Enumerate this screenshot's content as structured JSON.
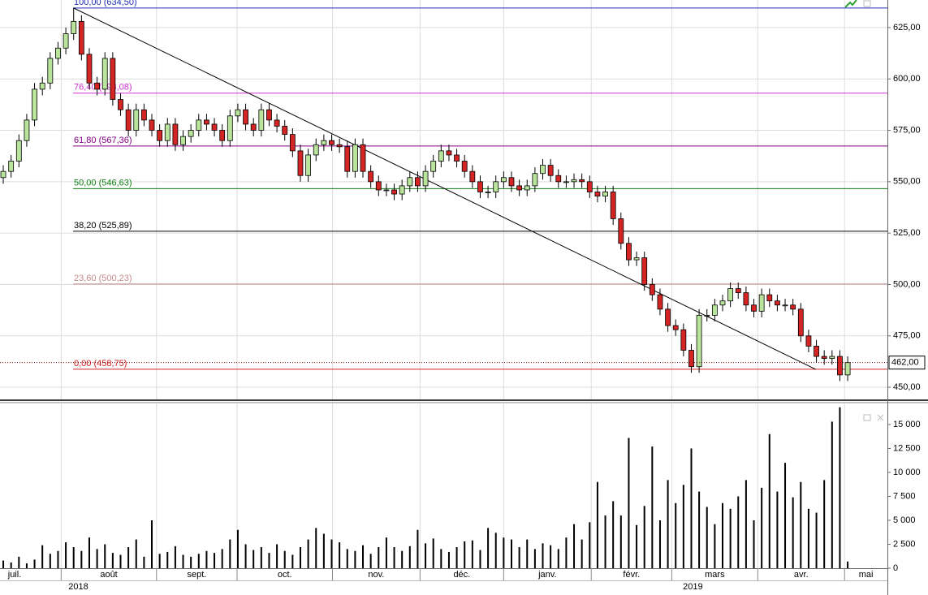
{
  "chart_data": [
    {
      "type": "candlestick",
      "open": [
        552,
        555,
        560,
        570,
        580,
        595,
        598,
        610,
        615,
        622,
        628,
        612,
        598,
        595,
        610,
        590,
        585,
        575,
        585,
        580,
        575,
        570,
        578,
        568,
        572,
        575,
        580,
        578,
        575,
        570,
        582,
        585,
        578,
        575,
        585,
        580,
        577,
        573,
        565,
        553,
        563,
        568,
        570,
        568,
        567,
        555,
        568,
        555,
        550,
        546,
        546,
        544,
        548,
        552,
        548,
        555,
        560,
        565,
        563,
        560,
        555,
        550,
        545,
        545,
        550,
        552,
        548,
        546,
        548,
        554,
        558,
        553,
        550,
        550,
        551,
        550,
        545,
        543,
        545,
        532,
        520,
        512,
        513,
        500,
        495,
        488,
        480,
        478,
        468,
        460,
        485,
        485,
        490,
        492,
        498,
        496,
        490,
        487,
        495,
        492,
        490,
        490,
        488,
        475,
        470,
        465,
        464,
        465,
        456
      ],
      "high": [
        558,
        563,
        573,
        583,
        598,
        601,
        613,
        618,
        625,
        634.5,
        631,
        615,
        601,
        613,
        613,
        593,
        588,
        588,
        588,
        583,
        578,
        581,
        581,
        575,
        578,
        583,
        583,
        581,
        578,
        585,
        588,
        588,
        581,
        588,
        588,
        583,
        580,
        576,
        568,
        566,
        571,
        573,
        573,
        571,
        570,
        571,
        571,
        558,
        553,
        549,
        549,
        551,
        555,
        555,
        558,
        563,
        568,
        568,
        566,
        563,
        558,
        553,
        548,
        553,
        555,
        555,
        551,
        551,
        557,
        561,
        561,
        556,
        553,
        554,
        554,
        553,
        548,
        548,
        548,
        535,
        523,
        516,
        516,
        503,
        498,
        491,
        483,
        481,
        471,
        488,
        488,
        493,
        495,
        501,
        501,
        499,
        493,
        498,
        498,
        495,
        493,
        493,
        491,
        478,
        473,
        468,
        468,
        468,
        465
      ],
      "low": [
        549,
        552,
        557,
        567,
        577,
        592,
        595,
        607,
        612,
        619,
        609,
        595,
        592,
        592,
        587,
        582,
        572,
        572,
        577,
        572,
        567,
        567,
        565,
        565,
        569,
        572,
        575,
        572,
        567,
        567,
        579,
        575,
        572,
        572,
        577,
        574,
        570,
        562,
        550,
        550,
        560,
        565,
        565,
        564,
        552,
        552,
        552,
        547,
        543,
        543,
        541,
        541,
        545,
        545,
        545,
        552,
        557,
        560,
        557,
        552,
        547,
        542,
        542,
        542,
        547,
        545,
        543,
        543,
        545,
        551,
        550,
        547,
        547,
        547,
        547,
        542,
        540,
        540,
        529,
        517,
        509,
        509,
        497,
        492,
        485,
        477,
        475,
        465,
        457,
        457,
        482,
        482,
        487,
        489,
        493,
        487,
        484,
        484,
        489,
        487,
        487,
        485,
        472,
        467,
        462,
        461,
        461,
        453,
        453
      ],
      "close": [
        555,
        560,
        570,
        580,
        595,
        598,
        610,
        615,
        622,
        628,
        612,
        598,
        595,
        610,
        590,
        585,
        575,
        585,
        580,
        575,
        570,
        578,
        568,
        572,
        575,
        580,
        578,
        575,
        570,
        582,
        585,
        578,
        575,
        585,
        580,
        577,
        573,
        565,
        553,
        563,
        568,
        570,
        568,
        567,
        555,
        568,
        555,
        550,
        546,
        546,
        544,
        548,
        552,
        548,
        555,
        560,
        565,
        563,
        560,
        555,
        550,
        545,
        545,
        550,
        552,
        548,
        546,
        548,
        554,
        558,
        553,
        550,
        550,
        551,
        550,
        545,
        543,
        545,
        532,
        520,
        512,
        513,
        500,
        495,
        488,
        480,
        478,
        468,
        460,
        485,
        485,
        490,
        492,
        498,
        496,
        490,
        487,
        495,
        492,
        490,
        490,
        488,
        475,
        470,
        465,
        464,
        465,
        456,
        462
      ],
      "up_color": "#b8e49c",
      "down_color": "#d42424",
      "xlim": [
        -0.42,
        113.08
      ],
      "ylim": [
        444.1,
        638.4
      ],
      "yticks": [
        {
          "value": 450,
          "label": "450,00"
        },
        {
          "value": 475,
          "label": "475,00"
        },
        {
          "value": 500,
          "label": "500,00"
        },
        {
          "value": 525,
          "label": "525,00"
        },
        {
          "value": 550,
          "label": "550,00"
        },
        {
          "value": 575,
          "label": "575,00"
        },
        {
          "value": 600,
          "label": "600,00"
        },
        {
          "value": 625,
          "label": "625,00"
        }
      ],
      "grid": true,
      "fib_levels": [
        {
          "value": 634.5,
          "label": "100,00 (634,50)",
          "color": "#1f2fb8"
        },
        {
          "value": 593.08,
          "label": "76,40 (593,08)",
          "color": "#d030d0"
        },
        {
          "value": 567.36,
          "label": "61,80 (567,36)",
          "color": "#800080"
        },
        {
          "value": 546.63,
          "label": "50,00 (546,63)",
          "color": "#108010"
        },
        {
          "value": 525.89,
          "label": "38,20 (525,89)",
          "color": "#000000"
        },
        {
          "value": 500.23,
          "label": "23,60 (500,23)",
          "color": "#c48a8a"
        },
        {
          "value": 458.75,
          "label": "0,00 (458,75)",
          "color": "#d02020"
        }
      ],
      "trendline": {
        "from": [
          9,
          634.5
        ],
        "to": [
          103.9,
          458.75
        ]
      },
      "last_price": {
        "value": 462,
        "label": "462,00"
      }
    },
    {
      "type": "bar",
      "values": [
        800,
        600,
        1200,
        500,
        900,
        2400,
        1500,
        1800,
        2700,
        2200,
        1800,
        3200,
        2000,
        2500,
        1600,
        1400,
        2200,
        3000,
        1200,
        5000,
        1500,
        1700,
        2300,
        1400,
        1200,
        1500,
        1800,
        1600,
        2000,
        3000,
        4000,
        2500,
        1900,
        2200,
        1600,
        2500,
        1800,
        1400,
        2200,
        3000,
        4200,
        3600,
        3000,
        2700,
        2000,
        1800,
        2400,
        1500,
        2200,
        3200,
        2200,
        1800,
        2300,
        4000,
        2600,
        3100,
        2000,
        1700,
        2200,
        2800,
        2900,
        1900,
        4200,
        3700,
        3200,
        3000,
        2200,
        3000,
        2000,
        2600,
        2400,
        2000,
        3200,
        4600,
        3000,
        4800,
        9000,
        5500,
        7000,
        5500,
        13600,
        4500,
        6500,
        12700,
        5000,
        9200,
        6800,
        8700,
        12500,
        8000,
        6400,
        4600,
        6800,
        6200,
        7500,
        9200,
        5000,
        8400,
        14000,
        8000,
        11000,
        7400,
        9000,
        6200,
        5800,
        9200,
        15300,
        16800,
        700
      ],
      "color": "#000000",
      "xlim": [
        -0.42,
        113.08
      ],
      "ylim": [
        0,
        17200
      ],
      "yticks": [
        0,
        {
          "value": 2500,
          "label": "2 500"
        },
        {
          "value": 5000,
          "label": "5 000"
        },
        {
          "value": 7500,
          "label": "7 500"
        },
        {
          "value": 10000,
          "label": "10 000"
        },
        {
          "value": 12500,
          "label": "12 500"
        },
        {
          "value": 15000,
          "label": "15 000"
        }
      ],
      "xticks": [
        {
          "value": -4.5,
          "label": "juil."
        },
        {
          "value": 7.4,
          "label": "août"
        },
        {
          "value": 19.6,
          "label": "sept."
        },
        {
          "value": 29.9,
          "label": "oct."
        },
        {
          "value": 42.1,
          "label": "nov."
        },
        {
          "value": 53.3,
          "label": "déc."
        },
        {
          "value": 64.0,
          "label": "janv."
        },
        {
          "value": 75.2,
          "label": "févr."
        },
        {
          "value": 85.5,
          "label": "mars"
        },
        {
          "value": 96.5,
          "label": "avr."
        },
        {
          "value": 107.6,
          "label": "mai"
        }
      ],
      "year_ticks": [
        {
          "value": 9.6,
          "label": "2018"
        },
        {
          "value": 88.2,
          "label": "2019"
        }
      ]
    }
  ]
}
